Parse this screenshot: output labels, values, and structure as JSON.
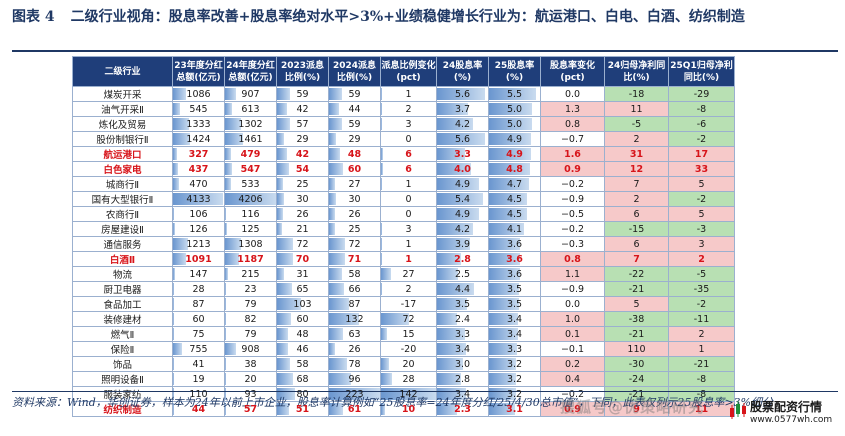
{
  "title": {
    "fig_label": "图表 4",
    "text": "二级行业视角：股息率改善+股息率绝对水平>3%+业绩稳健增长行业为：航运港口、白电、白酒、纺织制造"
  },
  "table": {
    "headers": [
      "二级行业",
      "23年度分红总额(亿元)",
      "24年度分红总额(亿元)",
      "2023派息比例(%)",
      "2024派息比例(%)",
      "派息比例变化(pct)",
      "24股息率(%)",
      "25股息率(%)",
      "股息率变化(pct)",
      "24归母净利同比(%)",
      "25Q1归母净利同比(%)"
    ],
    "bar_max": {
      "div23": 4206,
      "div24": 4206,
      "payout23": 223,
      "payout24": 223,
      "payout_chg": 142,
      "yield24": 6.0,
      "yield25": 6.0
    },
    "rows": [
      {
        "name": "煤炭开采",
        "div23": 1086,
        "div24": 907,
        "payout23": 59,
        "payout24": 59,
        "payout_chg": 1,
        "yield24": 5.6,
        "yield25": 5.5,
        "yield_chg": "0.0",
        "np24": -18,
        "np25q1": -29,
        "highlight": false
      },
      {
        "name": "油气开采Ⅱ",
        "div23": 545,
        "div24": 613,
        "payout23": 42,
        "payout24": 44,
        "payout_chg": 2,
        "yield24": 3.7,
        "yield25": 5.0,
        "yield_chg": "1.3",
        "np24": 11,
        "np25q1": -8,
        "highlight": false
      },
      {
        "name": "炼化及贸易",
        "div23": 1333,
        "div24": 1302,
        "payout23": 57,
        "payout24": 59,
        "payout_chg": 3,
        "yield24": 4.2,
        "yield25": 5.0,
        "yield_chg": "0.8",
        "np24": -5,
        "np25q1": -6,
        "highlight": false
      },
      {
        "name": "股份制银行Ⅱ",
        "div23": 1424,
        "div24": 1461,
        "payout23": 29,
        "payout24": 29,
        "payout_chg": 0,
        "yield24": 5.6,
        "yield25": 4.9,
        "yield_chg": "−0.7",
        "np24": 2,
        "np25q1": -2,
        "highlight": false
      },
      {
        "name": "航运港口",
        "div23": 327,
        "div24": 479,
        "payout23": 42,
        "payout24": 48,
        "payout_chg": 6,
        "yield24": 3.3,
        "yield25": 4.9,
        "yield_chg": "1.6",
        "np24": 31,
        "np25q1": 17,
        "highlight": true
      },
      {
        "name": "白色家电",
        "div23": 437,
        "div24": 547,
        "payout23": 54,
        "payout24": 60,
        "payout_chg": 6,
        "yield24": 4.0,
        "yield25": 4.8,
        "yield_chg": "0.9",
        "np24": 12,
        "np25q1": 33,
        "highlight": true
      },
      {
        "name": "城商行Ⅱ",
        "div23": 470,
        "div24": 533,
        "payout23": 25,
        "payout24": 27,
        "payout_chg": 1,
        "yield24": 4.9,
        "yield25": 4.7,
        "yield_chg": "−0.2",
        "np24": 7,
        "np25q1": 5,
        "highlight": false
      },
      {
        "name": "国有大型银行Ⅱ",
        "div23": 4133,
        "div24": 4206,
        "payout23": 30,
        "payout24": 30,
        "payout_chg": 0,
        "yield24": 5.4,
        "yield25": 4.5,
        "yield_chg": "−0.9",
        "np24": 2,
        "np25q1": -2,
        "highlight": false
      },
      {
        "name": "农商行Ⅱ",
        "div23": 106,
        "div24": 116,
        "payout23": 26,
        "payout24": 26,
        "payout_chg": 0,
        "yield24": 4.9,
        "yield25": 4.5,
        "yield_chg": "−0.5",
        "np24": 6,
        "np25q1": 5,
        "highlight": false
      },
      {
        "name": "房屋建设Ⅱ",
        "div23": 126,
        "div24": 125,
        "payout23": 21,
        "payout24": 25,
        "payout_chg": 3,
        "yield24": 4.2,
        "yield25": 4.1,
        "yield_chg": "−0.2",
        "np24": -15,
        "np25q1": -3,
        "highlight": false
      },
      {
        "name": "通信服务",
        "div23": 1213,
        "div24": 1308,
        "payout23": 72,
        "payout24": 72,
        "payout_chg": 1,
        "yield24": 3.9,
        "yield25": 3.6,
        "yield_chg": "−0.3",
        "np24": 6,
        "np25q1": 3,
        "highlight": false
      },
      {
        "name": "白酒Ⅱ",
        "div23": 1091,
        "div24": 1187,
        "payout23": 70,
        "payout24": 71,
        "payout_chg": 1,
        "yield24": 2.8,
        "yield25": 3.6,
        "yield_chg": "0.8",
        "np24": 7,
        "np25q1": 2,
        "highlight": true
      },
      {
        "name": "物流",
        "div23": 147,
        "div24": 215,
        "payout23": 31,
        "payout24": 58,
        "payout_chg": 27,
        "yield24": 2.5,
        "yield25": 3.6,
        "yield_chg": "1.1",
        "np24": -22,
        "np25q1": -5,
        "highlight": false
      },
      {
        "name": "厨卫电器",
        "div23": 28,
        "div24": 23,
        "payout23": 65,
        "payout24": 66,
        "payout_chg": 2,
        "yield24": 4.4,
        "yield25": 3.5,
        "yield_chg": "−0.9",
        "np24": -21,
        "np25q1": -35,
        "highlight": false
      },
      {
        "name": "食品加工",
        "div23": 87,
        "div24": 79,
        "payout23": 103,
        "payout24": 87,
        "payout_chg": -17,
        "yield24": 3.5,
        "yield25": 3.5,
        "yield_chg": "0.0",
        "np24": 5,
        "np25q1": -2,
        "highlight": false
      },
      {
        "name": "装修建材",
        "div23": 60,
        "div24": 82,
        "payout23": 60,
        "payout24": 132,
        "payout_chg": 72,
        "yield24": 2.4,
        "yield25": 3.4,
        "yield_chg": "1.0",
        "np24": -38,
        "np25q1": -11,
        "highlight": false
      },
      {
        "name": "燃气Ⅱ",
        "div23": 75,
        "div24": 79,
        "payout23": 48,
        "payout24": 63,
        "payout_chg": 15,
        "yield24": 3.3,
        "yield25": 3.4,
        "yield_chg": "0.1",
        "np24": -21,
        "np25q1": 2,
        "highlight": false
      },
      {
        "name": "保险Ⅱ",
        "div23": 755,
        "div24": 908,
        "payout23": 46,
        "payout24": 26,
        "payout_chg": -20,
        "yield24": 3.4,
        "yield25": 3.3,
        "yield_chg": "−0.1",
        "np24": 110,
        "np25q1": 1,
        "highlight": false
      },
      {
        "name": "饰品",
        "div23": 41,
        "div24": 38,
        "payout23": 58,
        "payout24": 78,
        "payout_chg": 20,
        "yield24": 3.0,
        "yield25": 3.2,
        "yield_chg": "0.2",
        "np24": -30,
        "np25q1": -21,
        "highlight": false
      },
      {
        "name": "照明设备Ⅱ",
        "div23": 19,
        "div24": 20,
        "payout23": 68,
        "payout24": 96,
        "payout_chg": 28,
        "yield24": 2.8,
        "yield25": 3.2,
        "yield_chg": "0.4",
        "np24": -24,
        "np25q1": -8,
        "highlight": false
      },
      {
        "name": "服装家纺",
        "div23": 110,
        "div24": 93,
        "payout23": 80,
        "payout24": 223,
        "payout_chg": 142,
        "yield24": 3.4,
        "yield25": 3.2,
        "yield_chg": "−0.2",
        "np24": -21,
        "np25q1": -8,
        "highlight": false
      },
      {
        "name": "纺织制造",
        "div23": 44,
        "div24": 57,
        "payout23": 51,
        "payout24": 61,
        "payout_chg": 10,
        "yield24": 2.3,
        "yield25": 3.1,
        "yield_chg": "0.9",
        "np24": 9,
        "np25q1": 11,
        "highlight": true
      }
    ]
  },
  "footnote": "资料来源：Wind，华创证券，样本为24年以前上市企业，股息率计算例如“25股息率=24年度分红/25/4/30总市值”，下同；此表仅列示25股息率>3%细分",
  "watermark": "搜狐号@优策略研究",
  "logo": {
    "text": "股票配资行情",
    "url": "www.0577wh.com"
  },
  "colors": {
    "header_bg": "#1f3e7a",
    "bar": "#6a96cf",
    "positive_bg": "#f6c9c9",
    "negative_bg": "#b8e0b3",
    "highlight_text": "#d7141a"
  }
}
